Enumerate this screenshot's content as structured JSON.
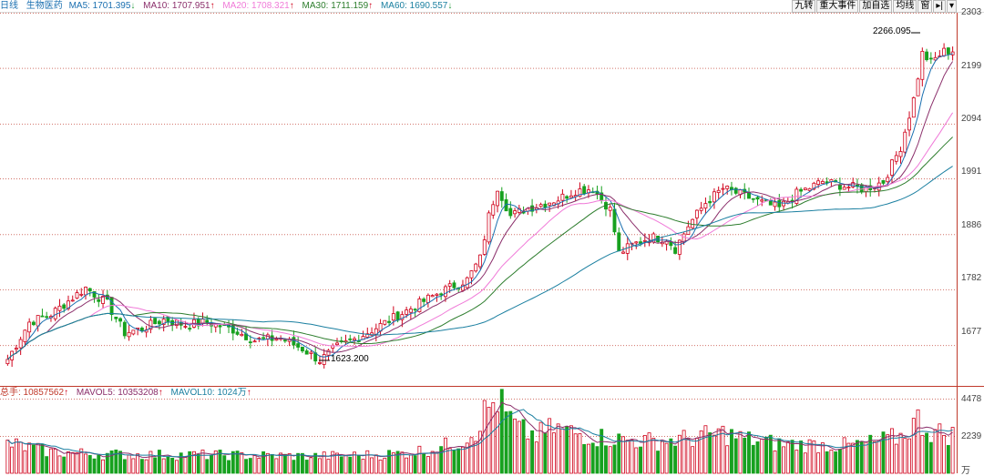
{
  "price_header": {
    "period": "日线",
    "name": "生物医药",
    "ma5": {
      "label": "MA5: 1701.395",
      "arrow": "↓",
      "color": "#1a6fb0",
      "arrow_color": "#2a9d3f"
    },
    "ma10": {
      "label": "MA10: 1707.951",
      "arrow": "↑",
      "color": "#8b2f6b",
      "arrow_color": "#d0021b"
    },
    "ma20": {
      "label": "MA20: 1708.321",
      "arrow": "↑",
      "color": "#f07ad8",
      "arrow_color": "#d0021b"
    },
    "ma30": {
      "label": "MA30: 1711.159",
      "arrow": "↑",
      "color": "#2d7d2d",
      "arrow_color": "#d0021b"
    },
    "ma60": {
      "label": "MA60: 1690.557",
      "arrow": "↓",
      "color": "#1a7fa0",
      "arrow_color": "#2a9d3f"
    }
  },
  "toolbar": {
    "nine_turn": "九转",
    "major_events": "重大事件",
    "add_self_select": "加自选",
    "ma_line": "均线",
    "window": "窗",
    "pin": "▸|",
    "dropdown": "▾"
  },
  "volume_header": {
    "total": {
      "label": "总手: 10857562",
      "arrow": "↑",
      "color": "#c0392b"
    },
    "mavol5": {
      "label": "MAVOL5: 10353208",
      "arrow": "↑",
      "color": "#8b2f6b"
    },
    "mavol10": {
      "label": "MAVOL10: 1024万",
      "arrow": "↑",
      "color": "#1a7fa0"
    }
  },
  "price_axis": [
    "2303",
    "2199",
    "2094",
    "1991",
    "1886",
    "1782",
    "1677"
  ],
  "volume_axis": [
    "4478",
    "2239",
    "万"
  ],
  "annotations": {
    "high": "2266.095",
    "low": "1623.200"
  },
  "colors": {
    "up": "#d0021b",
    "down": "#17a11f",
    "ma5": "#1a6fb0",
    "ma10": "#8b2f6b",
    "ma20": "#f07ad8",
    "ma30": "#2d7d2d",
    "ma60": "#1a7fa0",
    "grid": "#c0392b"
  },
  "chart_data": {
    "type": "candlestick",
    "price_range": [
      1600,
      2303
    ],
    "volume_range": [
      0,
      4478
    ],
    "volume_unit": "万",
    "close_anchors": [
      [
        0,
        1650
      ],
      [
        5,
        1720
      ],
      [
        10,
        1735
      ],
      [
        14,
        1760
      ],
      [
        18,
        1785
      ],
      [
        23,
        1755
      ],
      [
        27,
        1700
      ],
      [
        31,
        1708
      ],
      [
        36,
        1725
      ],
      [
        41,
        1715
      ],
      [
        46,
        1720
      ],
      [
        52,
        1706
      ],
      [
        57,
        1686
      ],
      [
        63,
        1690
      ],
      [
        68,
        1670
      ],
      [
        72,
        1648
      ],
      [
        76,
        1673
      ],
      [
        80,
        1688
      ],
      [
        84,
        1705
      ],
      [
        89,
        1728
      ],
      [
        95,
        1755
      ],
      [
        100,
        1778
      ],
      [
        106,
        1800
      ],
      [
        109,
        1840
      ],
      [
        111,
        1920
      ],
      [
        113,
        1975
      ],
      [
        116,
        1920
      ],
      [
        119,
        1932
      ],
      [
        123,
        1942
      ],
      [
        127,
        1952
      ],
      [
        131,
        1968
      ],
      [
        135,
        1972
      ],
      [
        139,
        1932
      ],
      [
        141,
        1850
      ],
      [
        144,
        1865
      ],
      [
        148,
        1880
      ],
      [
        152,
        1878
      ],
      [
        154,
        1858
      ],
      [
        157,
        1902
      ],
      [
        161,
        1945
      ],
      [
        165,
        1972
      ],
      [
        170,
        1958
      ],
      [
        174,
        1945
      ],
      [
        178,
        1935
      ],
      [
        182,
        1962
      ],
      [
        188,
        1985
      ],
      [
        194,
        1975
      ],
      [
        198,
        1972
      ],
      [
        202,
        1985
      ],
      [
        206,
        2050
      ],
      [
        209,
        2140
      ],
      [
        211,
        2226
      ],
      [
        213,
        2210
      ],
      [
        216,
        2230
      ],
      [
        218,
        2232
      ]
    ],
    "volume_anchors": [
      [
        0,
        1780
      ],
      [
        10,
        1280
      ],
      [
        20,
        1150
      ],
      [
        30,
        1100
      ],
      [
        40,
        1100
      ],
      [
        50,
        1080
      ],
      [
        60,
        1050
      ],
      [
        70,
        1010
      ],
      [
        80,
        1060
      ],
      [
        90,
        1170
      ],
      [
        98,
        1450
      ],
      [
        104,
        1850
      ],
      [
        108,
        2600
      ],
      [
        110,
        3600
      ],
      [
        112,
        4200
      ],
      [
        113,
        4478
      ],
      [
        115,
        3500
      ],
      [
        118,
        2600
      ],
      [
        122,
        2250
      ],
      [
        126,
        2700
      ],
      [
        131,
        2400
      ],
      [
        137,
        2150
      ],
      [
        142,
        2000
      ],
      [
        150,
        1900
      ],
      [
        158,
        2100
      ],
      [
        165,
        2400
      ],
      [
        170,
        2050
      ],
      [
        178,
        1750
      ],
      [
        186,
        1700
      ],
      [
        194,
        1650
      ],
      [
        200,
        1850
      ],
      [
        206,
        2200
      ],
      [
        210,
        3200
      ],
      [
        213,
        2500
      ],
      [
        218,
        2300
      ]
    ]
  }
}
